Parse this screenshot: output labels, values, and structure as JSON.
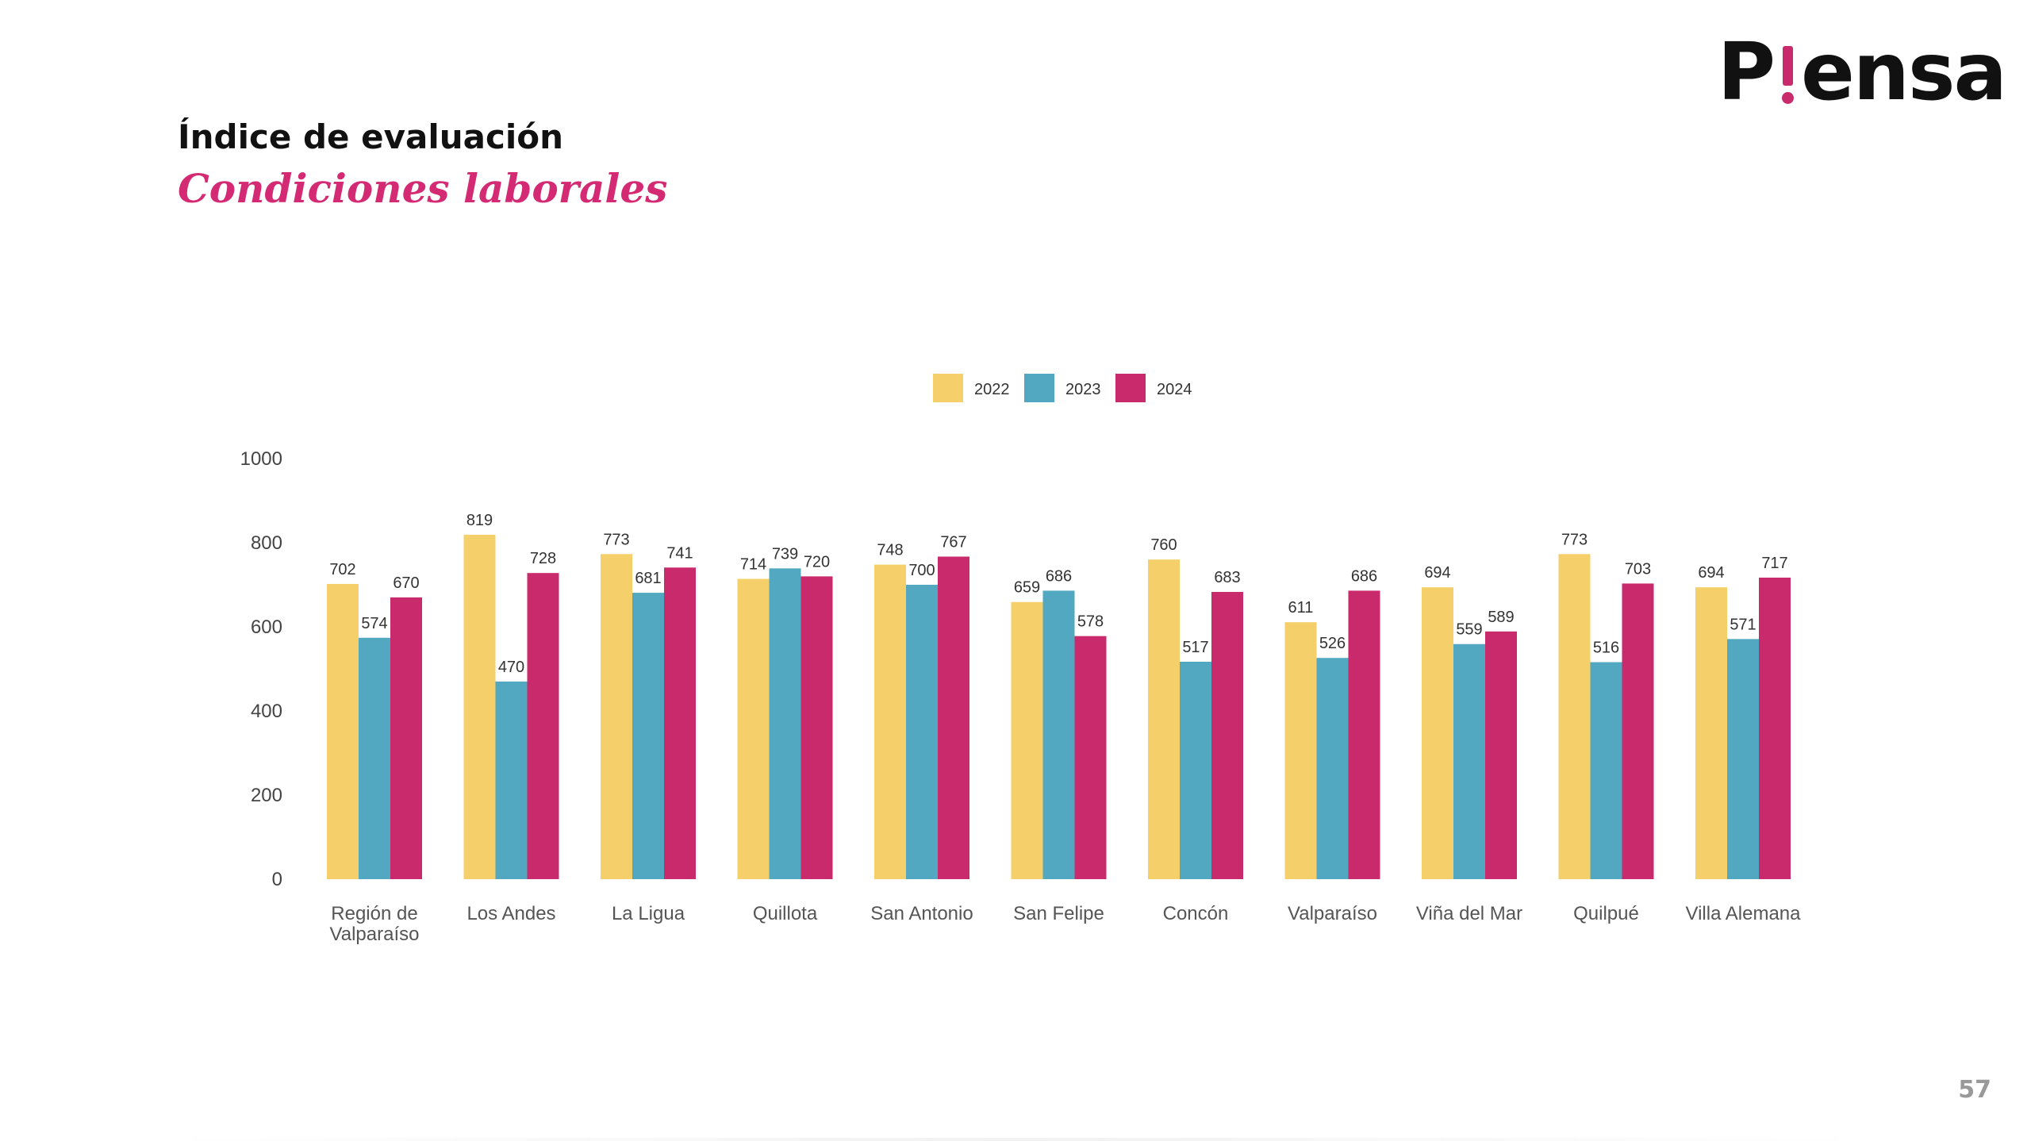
{
  "logo": {
    "before": "P",
    "after": "ensa"
  },
  "heading": "Índice de evaluación",
  "subheading": "Condiciones laborales",
  "page_number": "57",
  "colors": {
    "2022": "#f5cf6a",
    "2023": "#52a8c0",
    "2024": "#c92a6c",
    "brand": "#c92a6c",
    "subheading": "#d42a73"
  },
  "chart_data": {
    "type": "bar",
    "categories": [
      [
        "Región de",
        "Valparaíso"
      ],
      [
        "Los Andes"
      ],
      [
        "La Ligua"
      ],
      [
        "Quillota"
      ],
      [
        "San Antonio"
      ],
      [
        "San Felipe"
      ],
      [
        "Concón"
      ],
      [
        "Valparaíso"
      ],
      [
        "Viña del Mar"
      ],
      [
        "Quilpué"
      ],
      [
        "Villa Alemana"
      ]
    ],
    "series": [
      {
        "name": "2022",
        "color": "#f5cf6a",
        "values": [
          702,
          819,
          773,
          714,
          748,
          659,
          760,
          611,
          694,
          773,
          694
        ]
      },
      {
        "name": "2023",
        "color": "#52a8c0",
        "values": [
          574,
          470,
          681,
          739,
          700,
          686,
          517,
          526,
          559,
          516,
          571
        ]
      },
      {
        "name": "2024",
        "color": "#c92a6c",
        "values": [
          670,
          728,
          741,
          720,
          767,
          578,
          683,
          686,
          589,
          703,
          717
        ]
      }
    ],
    "yticks": [
      0,
      200,
      400,
      600,
      800,
      1000
    ],
    "ylim": [
      0,
      1000
    ],
    "legend_position": "top-center",
    "grid": false,
    "data_labels": true
  }
}
